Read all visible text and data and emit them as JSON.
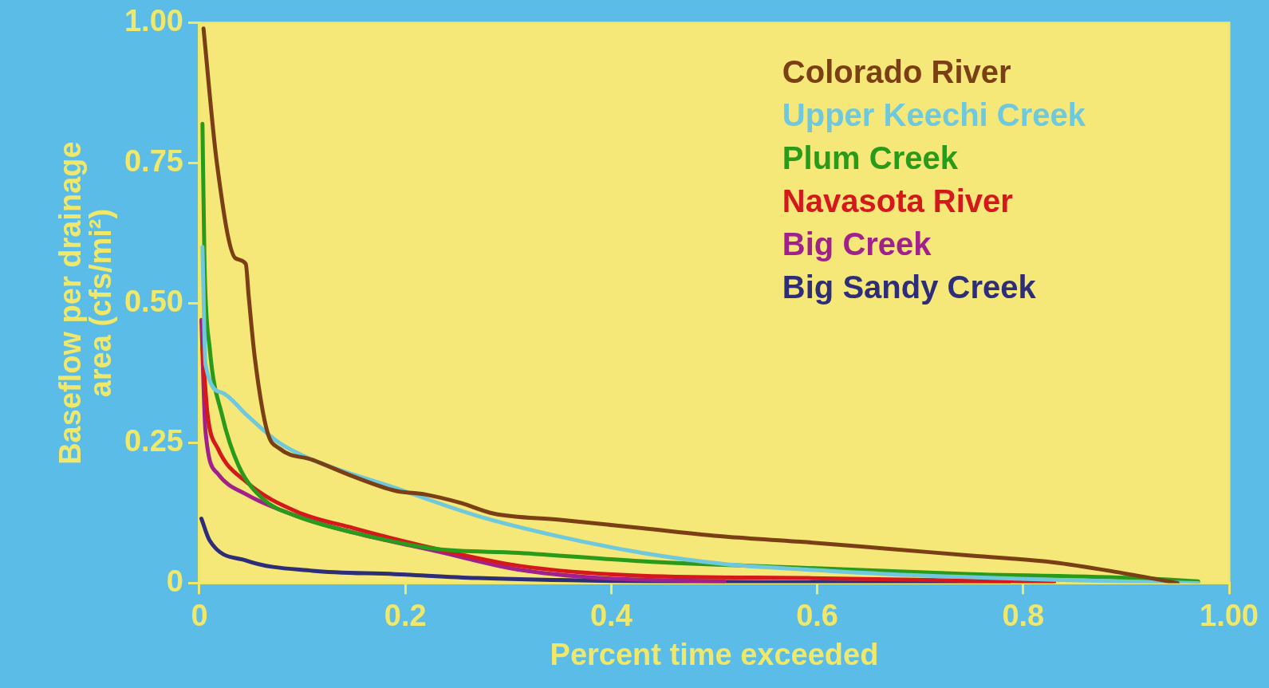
{
  "chart_data": {
    "type": "line",
    "xlabel": "Percent time exceeded",
    "ylabel": "Baseflow per drainage area (cfs/mi²)",
    "xlim": [
      0,
      1
    ],
    "xticks": [
      0,
      0.2,
      0.4,
      0.6,
      0.8,
      {
        "value": 1,
        "label": "1.00"
      }
    ],
    "ylim": [
      0,
      1
    ],
    "yticks": [
      0,
      0.25,
      {
        "value": 0.5,
        "label": "0.50"
      },
      0.75,
      {
        "value": 1,
        "label": "1.00"
      }
    ],
    "grid": false,
    "legend": "top right",
    "marker": "none",
    "line_style": "solid",
    "series": [
      {
        "name": "Colorado River",
        "color": "#7a3f14",
        "x": [
          0.004,
          0.017,
          0.035,
          0.045,
          0.048,
          0.054,
          0.066,
          0.078,
          0.11,
          0.15,
          0.19,
          0.22,
          0.254,
          0.286,
          0.35,
          0.43,
          0.51,
          0.59,
          0.67,
          0.75,
          0.83,
          0.89,
          0.95
        ],
        "values": [
          0.99,
          0.75,
          0.58,
          0.57,
          0.51,
          0.4,
          0.27,
          0.24,
          0.22,
          0.19,
          0.165,
          0.158,
          0.143,
          0.124,
          0.113,
          0.098,
          0.083,
          0.073,
          0.061,
          0.049,
          0.037,
          0.02,
          0
        ]
      },
      {
        "name": "Upper Keechi Creek",
        "color": "#6fc8dc",
        "x": [
          0.003,
          0.006,
          0.022,
          0.046,
          0.078,
          0.11,
          0.19,
          0.27,
          0.35,
          0.43,
          0.51,
          0.59,
          0.67,
          0.83,
          0.97
        ],
        "values": [
          0.6,
          0.39,
          0.34,
          0.3,
          0.25,
          0.22,
          0.17,
          0.12,
          0.083,
          0.054,
          0.034,
          0.024,
          0.016,
          0.006,
          0
        ]
      },
      {
        "name": "Plum Creek",
        "color": "#2a9a1a",
        "x": [
          0.003,
          0.005,
          0.01,
          0.022,
          0.038,
          0.062,
          0.094,
          0.15,
          0.23,
          0.31,
          0.43,
          0.59,
          0.75,
          0.91,
          0.97
        ],
        "values": [
          0.82,
          0.57,
          0.42,
          0.3,
          0.21,
          0.15,
          0.12,
          0.09,
          0.061,
          0.054,
          0.039,
          0.027,
          0.016,
          0.009,
          0.003
        ]
      },
      {
        "name": "Navasota River",
        "color": "#d4181c",
        "x": [
          0.003,
          0.008,
          0.018,
          0.046,
          0.094,
          0.15,
          0.23,
          0.31,
          0.43,
          0.59,
          0.75,
          0.83
        ],
        "values": [
          0.42,
          0.3,
          0.24,
          0.18,
          0.128,
          0.098,
          0.061,
          0.031,
          0.013,
          0.009,
          0.004,
          0.002
        ]
      },
      {
        "name": "Big Creek",
        "color": "#a0208c",
        "x": [
          0.002,
          0.006,
          0.018,
          0.046,
          0.094,
          0.15,
          0.23,
          0.31,
          0.39,
          0.51
        ],
        "values": [
          0.47,
          0.27,
          0.195,
          0.158,
          0.12,
          0.09,
          0.057,
          0.024,
          0.009,
          0.003
        ]
      },
      {
        "name": "Big Sandy Creek",
        "color": "#2e2e78",
        "x": [
          0.002,
          0.01,
          0.046,
          0.11,
          0.19,
          0.27,
          0.43,
          0.786
        ],
        "values": [
          0.115,
          0.076,
          0.04,
          0.022,
          0.016,
          0.009,
          0.003,
          0
        ]
      }
    ]
  }
}
